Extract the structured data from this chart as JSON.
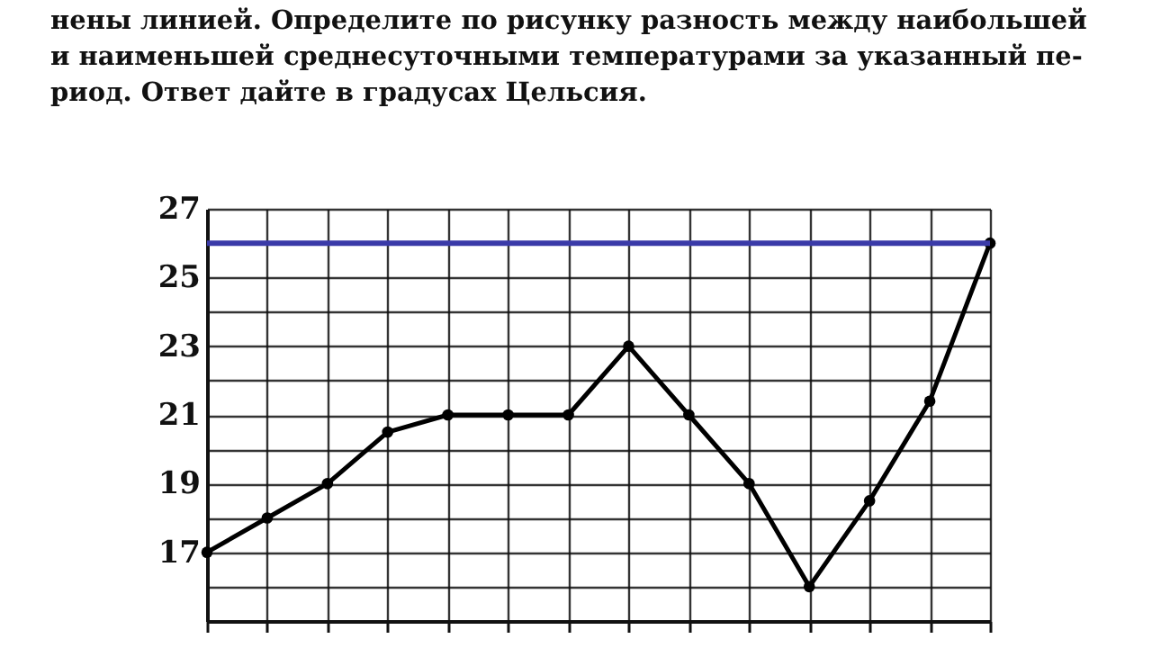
{
  "chart_data": {
    "type": "line",
    "annotations": [
      "нены линией. Определите по рисунку разность между наибольшей",
      "и наименьшей среднесуточными температурами за указанный пе-",
      "риод. Ответ дайте в градусах Цельсия."
    ],
    "categories": [
      null,
      null,
      null,
      null,
      null,
      null,
      null,
      null,
      null,
      null,
      null,
      null,
      null,
      null
    ],
    "series": [
      {
        "color": "#000000",
        "values": [
          17,
          18,
          19,
          20.5,
          21,
          21,
          21,
          23,
          21,
          19,
          16,
          18.5,
          21.4,
          26
        ]
      }
    ],
    "ylim": [
      15,
      27
    ],
    "yticks": [
      {
        "value": 15,
        "label": null
      },
      {
        "value": 16,
        "label": null
      },
      17,
      {
        "value": 18,
        "label": null
      },
      19,
      {
        "value": 20,
        "label": null
      },
      21,
      {
        "value": 22,
        "label": null
      },
      23,
      {
        "value": 24,
        "label": null
      },
      25,
      {
        "value": 26,
        "label": null
      },
      27
    ],
    "ref_lines": [
      {
        "axis": "y",
        "value": 26,
        "color": "#3a3aa8"
      }
    ],
    "grid": true,
    "tick_labels": "y",
    "marker": "circle",
    "line_style": "solid"
  }
}
